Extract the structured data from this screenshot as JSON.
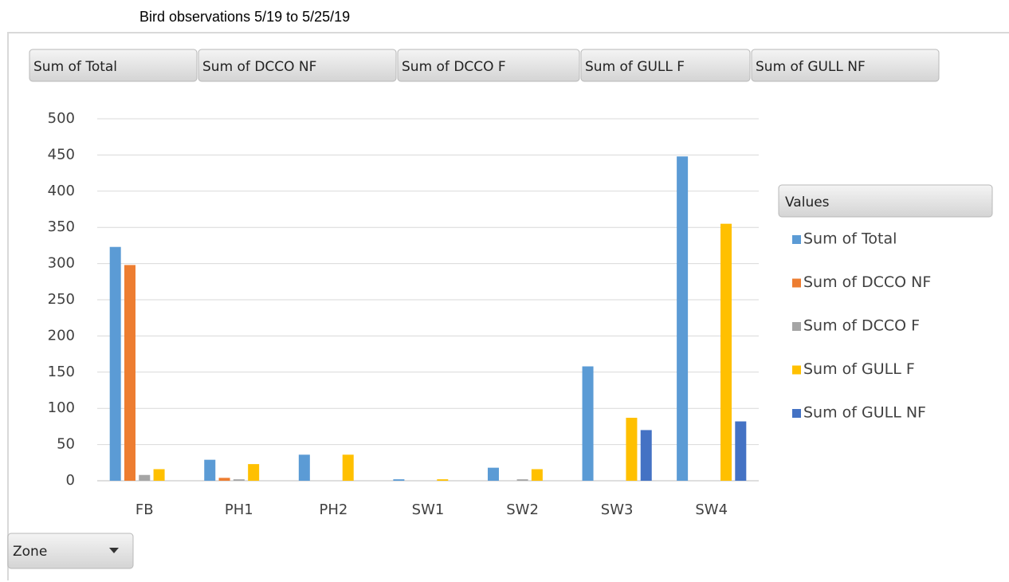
{
  "chart_data": {
    "type": "bar",
    "title": "Bird observations 5/19 to 5/25/19",
    "categories": [
      "FB",
      "PH1",
      "PH2",
      "SW1",
      "SW2",
      "SW3",
      "SW4"
    ],
    "series": [
      {
        "name": "Sum of Total",
        "color": "#5b9bd5",
        "values": [
          323,
          29,
          36,
          2,
          18,
          158,
          448
        ]
      },
      {
        "name": "Sum of DCCO NF",
        "color": "#ed7d31",
        "values": [
          298,
          4,
          0,
          0,
          0,
          0,
          0
        ]
      },
      {
        "name": "Sum of DCCO F",
        "color": "#a5a5a5",
        "values": [
          8,
          2,
          0,
          0,
          2,
          0,
          0
        ]
      },
      {
        "name": "Sum of GULL F",
        "color": "#ffc000",
        "values": [
          16,
          23,
          36,
          2,
          16,
          87,
          355
        ]
      },
      {
        "name": "Sum of GULL NF",
        "color": "#4472c4",
        "values": [
          0,
          0,
          0,
          0,
          0,
          70,
          82
        ]
      }
    ],
    "ylim": [
      0,
      500
    ],
    "yticks": [
      0,
      50,
      100,
      150,
      200,
      250,
      300,
      350,
      400,
      450,
      500
    ],
    "grid": true,
    "legend_title": "Values",
    "x_field": "Zone"
  }
}
